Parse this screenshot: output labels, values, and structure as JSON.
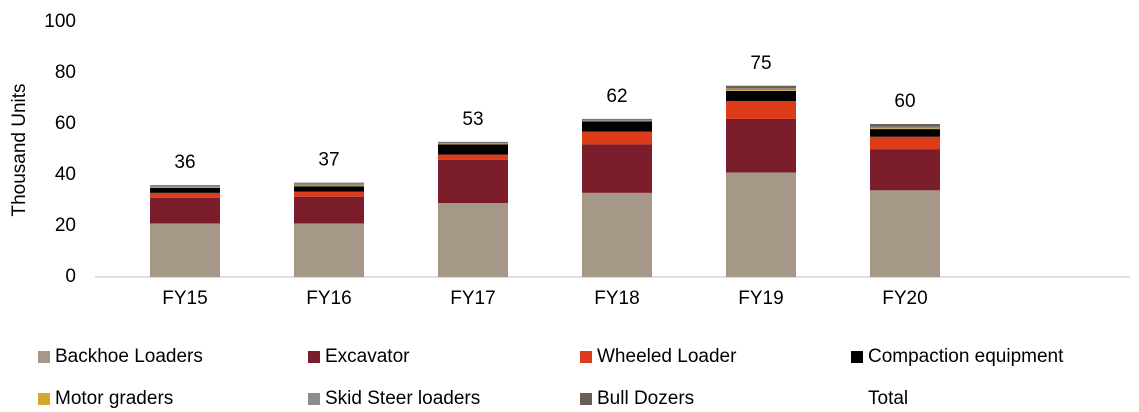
{
  "chart_data": {
    "type": "bar",
    "stacked": true,
    "y_label": "Thousand Units",
    "categories": [
      "FY15",
      "FY16",
      "FY17",
      "FY18",
      "FY19",
      "FY20"
    ],
    "series": [
      {
        "name": "Backhoe Loaders",
        "color": "#a69886",
        "values": [
          21,
          21,
          29,
          33,
          41,
          34
        ]
      },
      {
        "name": "Excavator",
        "color": "#7b1c2a",
        "values": [
          10,
          10.5,
          17,
          19,
          21,
          16
        ]
      },
      {
        "name": "Wheeled Loader",
        "color": "#dd3c1b",
        "values": [
          2,
          2,
          2,
          5,
          7,
          5
        ]
      },
      {
        "name": "Compaction equipment",
        "color": "#000000",
        "values": [
          2,
          2,
          4,
          4,
          4,
          3
        ]
      },
      {
        "name": "Motor graders",
        "color": "#d4a82a",
        "values": [
          0.2,
          0.2,
          0.2,
          0.2,
          0.3,
          0.3
        ]
      },
      {
        "name": "Skid Steer loaders",
        "color": "#8c8c8c",
        "values": [
          0.5,
          1,
          0.5,
          0.5,
          0.7,
          0.7
        ]
      },
      {
        "name": "Bull Dozers",
        "color": "#6b5d52",
        "values": [
          0.3,
          0.3,
          0.3,
          0.3,
          1,
          1
        ]
      }
    ],
    "total": {
      "name": "Total",
      "values": [
        36,
        37,
        53,
        62,
        75,
        60
      ]
    },
    "ylim": [
      0,
      100
    ],
    "yticks": [
      0,
      20,
      40,
      60,
      80,
      100
    ],
    "grid": false,
    "legend": "bottom"
  }
}
